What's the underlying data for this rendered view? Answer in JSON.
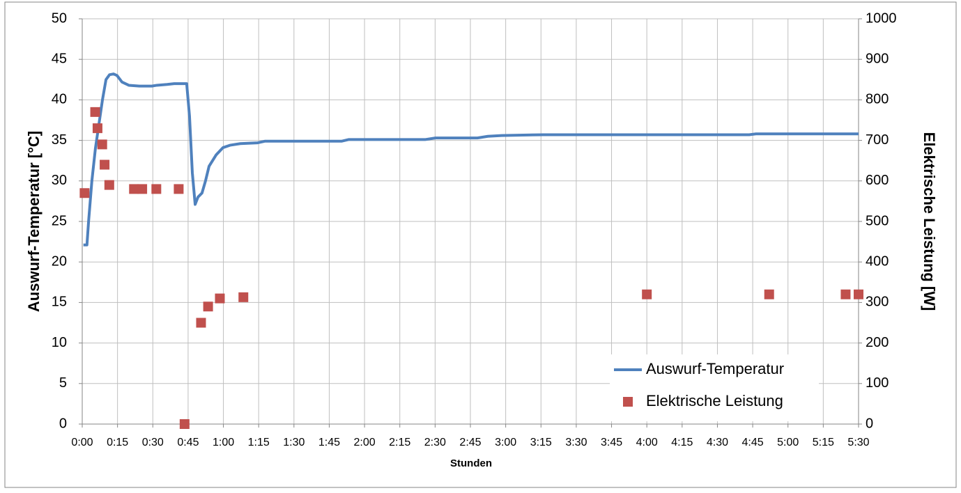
{
  "chart_data": {
    "type": "line",
    "x_label": "Stunden",
    "y_label": "Auswurf-Temperatur [°C]",
    "y2_label": "Elektrische Leistung [W]",
    "xlim": [
      0,
      330
    ],
    "xticks": [
      {
        "value": 0,
        "label": "0:00"
      },
      {
        "value": 15,
        "label": "0:15"
      },
      {
        "value": 30,
        "label": "0:30"
      },
      {
        "value": 45,
        "label": "0:45"
      },
      {
        "value": 60,
        "label": "1:00"
      },
      {
        "value": 75,
        "label": "1:15"
      },
      {
        "value": 90,
        "label": "1:30"
      },
      {
        "value": 105,
        "label": "1:45"
      },
      {
        "value": 120,
        "label": "2:00"
      },
      {
        "value": 135,
        "label": "2:15"
      },
      {
        "value": 150,
        "label": "2:30"
      },
      {
        "value": 165,
        "label": "2:45"
      },
      {
        "value": 180,
        "label": "3:00"
      },
      {
        "value": 195,
        "label": "3:15"
      },
      {
        "value": 210,
        "label": "3:30"
      },
      {
        "value": 225,
        "label": "3:45"
      },
      {
        "value": 240,
        "label": "4:00"
      },
      {
        "value": 255,
        "label": "4:15"
      },
      {
        "value": 270,
        "label": "4:30"
      },
      {
        "value": 285,
        "label": "4:45"
      },
      {
        "value": 300,
        "label": "5:00"
      },
      {
        "value": 315,
        "label": "5:15"
      },
      {
        "value": 330,
        "label": "5:30"
      }
    ],
    "ylim": [
      0,
      50
    ],
    "yticks": [
      0,
      5,
      10,
      15,
      20,
      25,
      30,
      35,
      40,
      45,
      50
    ],
    "y2lim": [
      0,
      1000
    ],
    "y2ticks": [
      0,
      100,
      200,
      300,
      400,
      500,
      600,
      700,
      800,
      900,
      1000
    ],
    "grid": true,
    "legend": "lower right",
    "series": [
      {
        "name": "Auswurf-Temperatur",
        "color": "#4f81bd",
        "type": "line",
        "x": [
          0.5,
          2,
          2.7,
          4.1,
          5.6,
          7.1,
          8.6,
          10.1,
          11.6,
          13.3,
          14.8,
          16.9,
          19.8,
          24.3,
          29.6,
          31.7,
          36.1,
          39.1,
          44.4,
          45.6,
          46.8,
          48,
          49.2,
          50.9,
          52.4,
          53.9,
          56.9,
          59.8,
          62.8,
          67.2,
          74.6,
          77.6,
          110.2,
          113.2,
          145.7,
          150.2,
          168,
          172.4,
          178.3,
          196.1,
          283.5,
          286.4,
          330
        ],
        "values": [
          22.1,
          22.1,
          25,
          30,
          34,
          37,
          40,
          42.5,
          43.1,
          43.2,
          43,
          42.2,
          41.8,
          41.7,
          41.7,
          41.8,
          41.9,
          42,
          42,
          38,
          31,
          27.1,
          28,
          28.5,
          30,
          31.8,
          33.2,
          34.1,
          34.4,
          34.6,
          34.7,
          34.9,
          34.9,
          35.1,
          35.1,
          35.3,
          35.3,
          35.5,
          35.6,
          35.7,
          35.7,
          35.8,
          35.8
        ]
      },
      {
        "name": "Elektrische Leistung",
        "color": "#c0504d",
        "type": "scatter",
        "axis": "y2",
        "x": [
          1,
          5.5,
          6.5,
          8.5,
          9.5,
          11.5,
          22,
          25.5,
          31.5,
          41,
          43.5,
          50.5,
          53.5,
          58.5,
          68.5,
          240,
          292,
          324.5,
          330
        ],
        "values": [
          570,
          770,
          730,
          690,
          640,
          590,
          580,
          580,
          580,
          580,
          0,
          250,
          290,
          310,
          313,
          320,
          320,
          320,
          320
        ]
      }
    ]
  }
}
